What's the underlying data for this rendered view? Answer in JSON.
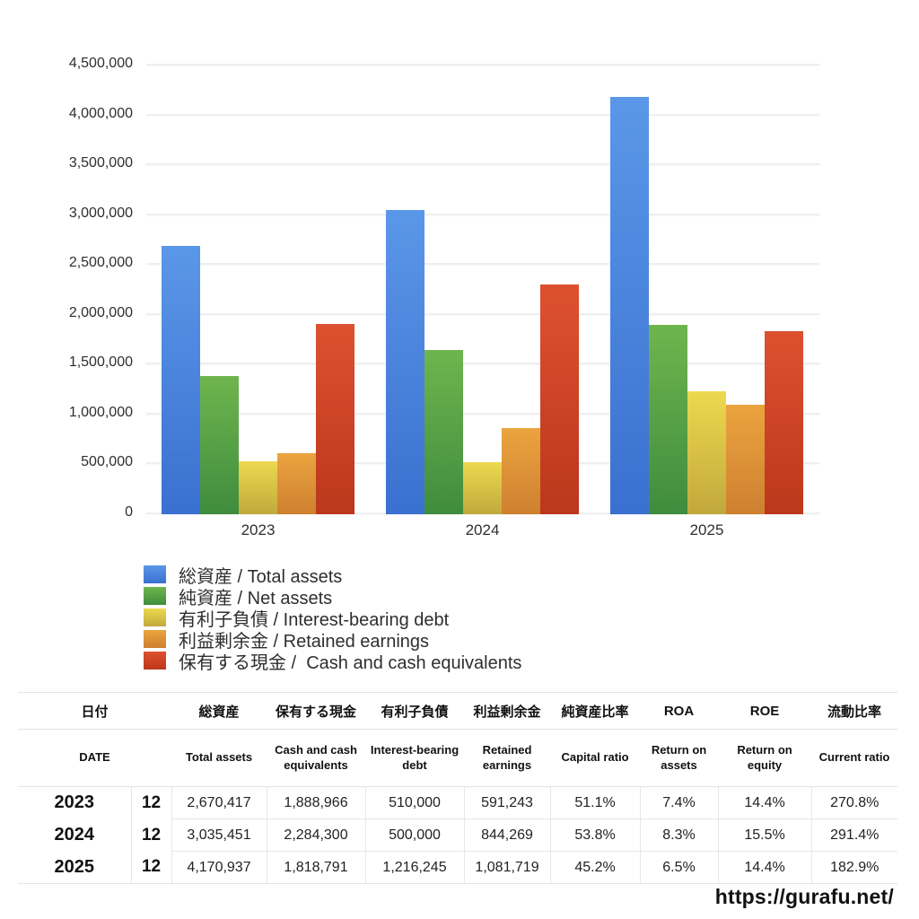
{
  "chart_data": {
    "type": "bar",
    "title": "",
    "categories": [
      "2023",
      "2024",
      "2025"
    ],
    "series": [
      {
        "label": "総資産 / Total assets",
        "color_top": "#5B97E8",
        "color_bottom": "#3A70D0",
        "values": [
          2670417,
          3035451,
          4170937
        ]
      },
      {
        "label": "純資産 / Net assets",
        "color_top": "#6FB54E",
        "color_bottom": "#3F8C3E",
        "values": [
          1364583,
          1633073,
          1885264
        ]
      },
      {
        "label": "有利子負債 / Interest-bearing debt",
        "color_top": "#EDD94F",
        "color_bottom": "#C2A83C",
        "values": [
          510000,
          500000,
          1216245
        ]
      },
      {
        "label": "利益剰余金 / Retained earnings",
        "color_top": "#EBA43F",
        "color_bottom": "#CE8030",
        "values": [
          591243,
          844269,
          1081719
        ]
      },
      {
        "label": "保有する現金 /  Cash and cash equivalents",
        "color_top": "#DD5130",
        "color_bottom": "#BC371C",
        "values": [
          1888966,
          2284300,
          1818791
        ]
      }
    ],
    "ylim": [
      0,
      4500000
    ],
    "ytick_step": 500000,
    "yticks": [
      "4,500,000",
      "4,000,000",
      "3,500,000",
      "3,000,000",
      "2,500,000",
      "2,000,000",
      "1,500,000",
      "1,000,000",
      "500,000",
      "0"
    ],
    "grid": true,
    "legend_position": "bottom-left"
  },
  "table": {
    "header_jp": [
      "日付",
      "総資産",
      "保有する現金",
      "有利子負債",
      "利益剰余金",
      "純資産比率",
      "ROA",
      "ROE",
      "流動比率"
    ],
    "header_en": [
      "DATE",
      "Total assets",
      "Cash and cash equivalents",
      "Interest-bearing debt",
      "Retained earnings",
      "Capital ratio",
      "Return on assets",
      "Return on equity",
      "Current ratio"
    ],
    "rows": [
      {
        "year": "2023",
        "month": "12",
        "cells": [
          "2,670,417",
          "1,888,966",
          "510,000",
          "591,243",
          "51.1%",
          "7.4%",
          "14.4%",
          "270.8%"
        ]
      },
      {
        "year": "2024",
        "month": "12",
        "cells": [
          "3,035,451",
          "2,284,300",
          "500,000",
          "844,269",
          "53.8%",
          "8.3%",
          "15.5%",
          "291.4%"
        ]
      },
      {
        "year": "2025",
        "month": "12",
        "cells": [
          "4,170,937",
          "1,818,791",
          "1,216,245",
          "1,081,719",
          "45.2%",
          "6.5%",
          "14.4%",
          "182.9%"
        ]
      }
    ]
  },
  "footer": {
    "url": "https://gurafu.net/"
  }
}
